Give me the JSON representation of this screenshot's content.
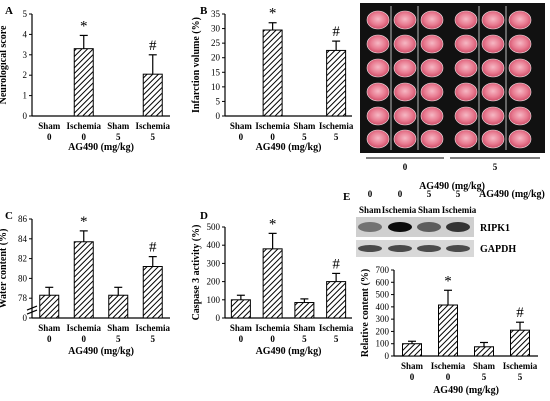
{
  "chart_data": [
    {
      "id": "A",
      "type": "bar",
      "panel_label": "A",
      "ylabel": "Neurological score",
      "xlabel": "AG490 (mg/kg)",
      "categories": [
        "Sham",
        "Ischemia",
        "Sham",
        "Ischemia"
      ],
      "doses": [
        "0",
        "0",
        "5",
        "5"
      ],
      "ylim": [
        0,
        5
      ],
      "yticks": [
        "0",
        "1",
        "2",
        "3",
        "4",
        "5"
      ],
      "values": [
        0,
        3.3,
        0,
        2.05
      ],
      "errors": [
        0,
        0.65,
        0,
        0.95
      ],
      "markers": [
        "",
        "*",
        "",
        "#"
      ]
    },
    {
      "id": "B",
      "type": "bar",
      "panel_label": "B",
      "ylabel": "Infarction volume (%)",
      "xlabel": "AG490 (mg/kg)",
      "categories": [
        "Sham",
        "Ischemia",
        "Sham",
        "Ischemia"
      ],
      "doses": [
        "0",
        "0",
        "5",
        "5"
      ],
      "ylim": [
        0,
        35
      ],
      "yticks": [
        "0",
        "5",
        "10",
        "15",
        "20",
        "25",
        "30",
        "35"
      ],
      "values": [
        0,
        29.5,
        0,
        22.5
      ],
      "errors": [
        0,
        2.5,
        0,
        3.2
      ],
      "markers": [
        "",
        "*",
        "",
        "#"
      ]
    },
    {
      "id": "C",
      "type": "bar",
      "panel_label": "C",
      "ylabel": "Water content (%)",
      "xlabel": "AG490 (mg/kg)",
      "categories": [
        "Sham",
        "Ischemia",
        "Sham",
        "Ischemia"
      ],
      "doses": [
        "0",
        "0",
        "5",
        "5"
      ],
      "ylim": [
        76,
        86
      ],
      "yticks": [
        "0",
        "78",
        "80",
        "82",
        "84",
        "86"
      ],
      "axis_break": true,
      "values": [
        78.3,
        83.7,
        78.3,
        81.2
      ],
      "errors": [
        0.8,
        1.1,
        0.8,
        1.0
      ],
      "markers": [
        "",
        "*",
        "",
        "#"
      ]
    },
    {
      "id": "D",
      "type": "bar",
      "panel_label": "D",
      "ylabel": "Caspase 3 activity (%)",
      "xlabel": "AG490 (mg/kg)",
      "categories": [
        "Sham",
        "Ischemia",
        "Sham",
        "Ischemia"
      ],
      "doses": [
        "0",
        "0",
        "5",
        "5"
      ],
      "ylim": [
        0,
        500
      ],
      "yticks": [
        "0",
        "100",
        "200",
        "300",
        "400",
        "500"
      ],
      "values": [
        100,
        380,
        85,
        200
      ],
      "errors": [
        25,
        85,
        20,
        45
      ],
      "markers": [
        "",
        "*",
        "",
        "#"
      ]
    },
    {
      "id": "E",
      "type": "bar",
      "panel_label": "E",
      "ylabel": "Relative content (%)",
      "xlabel": "AG490 (mg/kg)",
      "categories": [
        "Sham",
        "Ischemia",
        "Sham",
        "Ischemia"
      ],
      "doses": [
        "0",
        "0",
        "5",
        "5"
      ],
      "ylim": [
        0,
        700
      ],
      "yticks": [
        "0",
        "100",
        "200",
        "300",
        "400",
        "500",
        "600",
        "700"
      ],
      "values": [
        100,
        415,
        75,
        210
      ],
      "errors": [
        20,
        120,
        35,
        65
      ],
      "markers": [
        "",
        "*",
        "",
        "#"
      ]
    }
  ],
  "brain_sections": {
    "group_labels": [
      "0",
      "5"
    ],
    "xlabel": "AG490 (mg/kg)"
  },
  "western_blot": {
    "doses": [
      "0",
      "0",
      "5",
      "5"
    ],
    "dose_label": "AG490 (mg/kg)",
    "categories": [
      "Sham",
      "Ischemia",
      "Sham",
      "Ischemia"
    ],
    "bands": [
      "RIPK1",
      "GAPDH"
    ]
  }
}
